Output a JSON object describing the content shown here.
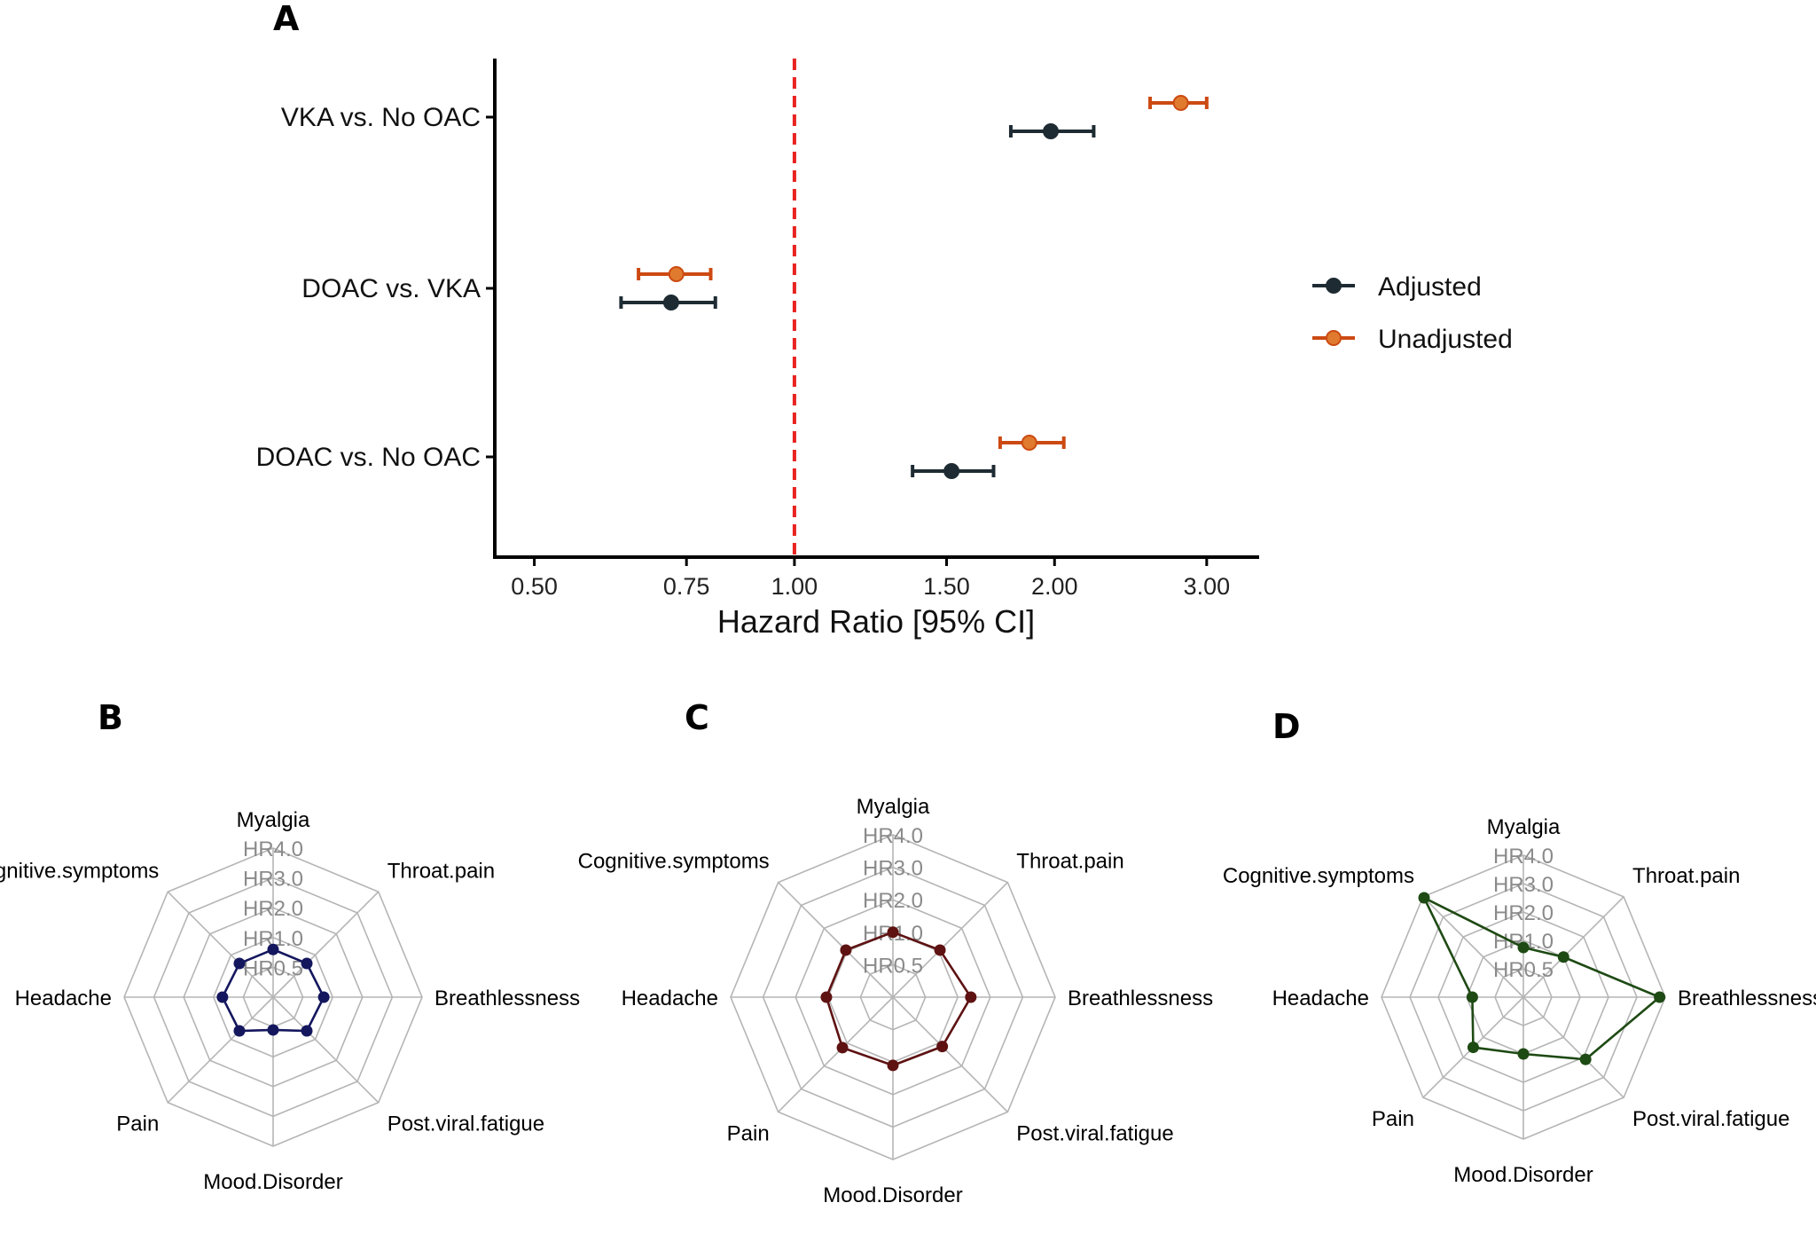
{
  "chart_data": [
    {
      "panel": "A",
      "type": "scatter",
      "subtype": "forest",
      "scale": "log",
      "xlabel": "Hazard Ratio [95% CI]",
      "xticks": [
        "0.50",
        "0.75",
        "1.00",
        "1.50",
        "2.00",
        "3.00"
      ],
      "xlim": [
        0.45,
        3.45
      ],
      "reference_line": 1.0,
      "reference_color": "#e8231f",
      "categories": [
        "VKA vs. No OAC",
        "DOAC vs. VKA",
        "DOAC vs. No OAC"
      ],
      "legend_position": "right",
      "series": [
        {
          "name": "Adjusted",
          "color": "#1e2b33",
          "points": [
            {
              "category": "VKA vs. No OAC",
              "hr": 1.98,
              "lo": 1.78,
              "hi": 2.22
            },
            {
              "category": "DOAC vs. VKA",
              "hr": 0.72,
              "lo": 0.63,
              "hi": 0.81
            },
            {
              "category": "DOAC vs. No OAC",
              "hr": 1.52,
              "lo": 1.37,
              "hi": 1.7
            }
          ]
        },
        {
          "name": "Unadjusted",
          "color": "#cc4a12",
          "points": [
            {
              "category": "VKA vs. No OAC",
              "hr": 2.8,
              "lo": 2.58,
              "hi": 3.0
            },
            {
              "category": "DOAC vs. VKA",
              "hr": 0.73,
              "lo": 0.66,
              "hi": 0.8
            },
            {
              "category": "DOAC vs. No OAC",
              "hr": 1.87,
              "lo": 1.73,
              "hi": 2.05
            }
          ]
        }
      ]
    },
    {
      "panel": "B",
      "type": "radar",
      "axes": [
        "Myalgia",
        "Throat.pain",
        "Breathlessness",
        "Post.viral.fatigue",
        "Mood.Disorder",
        "Pain",
        "Headache",
        "Cognitive.symptoms"
      ],
      "ring_labels": [
        "HR0.5",
        "HR1.0",
        "HR2.0",
        "HR3.0",
        "HR4.0"
      ],
      "color": "#14175e",
      "values": [
        0.32,
        0.32,
        0.34,
        0.32,
        0.22,
        0.32,
        0.34,
        0.32
      ]
    },
    {
      "panel": "C",
      "type": "radar",
      "axes": [
        "Myalgia",
        "Throat.pain",
        "Breathlessness",
        "Post.viral.fatigue",
        "Mood.Disorder",
        "Pain",
        "Headache",
        "Cognitive.symptoms"
      ],
      "ring_labels": [
        "HR0.5",
        "HR1.0",
        "HR2.0",
        "HR3.0",
        "HR4.0"
      ],
      "color": "#5e1212",
      "values": [
        0.4,
        0.41,
        0.48,
        0.43,
        0.42,
        0.44,
        0.41,
        0.41
      ]
    },
    {
      "panel": "D",
      "type": "radar",
      "axes": [
        "Myalgia",
        "Throat.pain",
        "Breathlessness",
        "Post.viral.fatigue",
        "Mood.Disorder",
        "Pain",
        "Headache",
        "Cognitive.symptoms"
      ],
      "ring_labels": [
        "HR0.5",
        "HR1.0",
        "HR2.0",
        "HR3.0",
        "HR4.0"
      ],
      "color": "#1e4a14",
      "values": [
        0.35,
        0.4,
        0.96,
        0.62,
        0.4,
        0.5,
        0.36,
        0.99
      ]
    }
  ]
}
